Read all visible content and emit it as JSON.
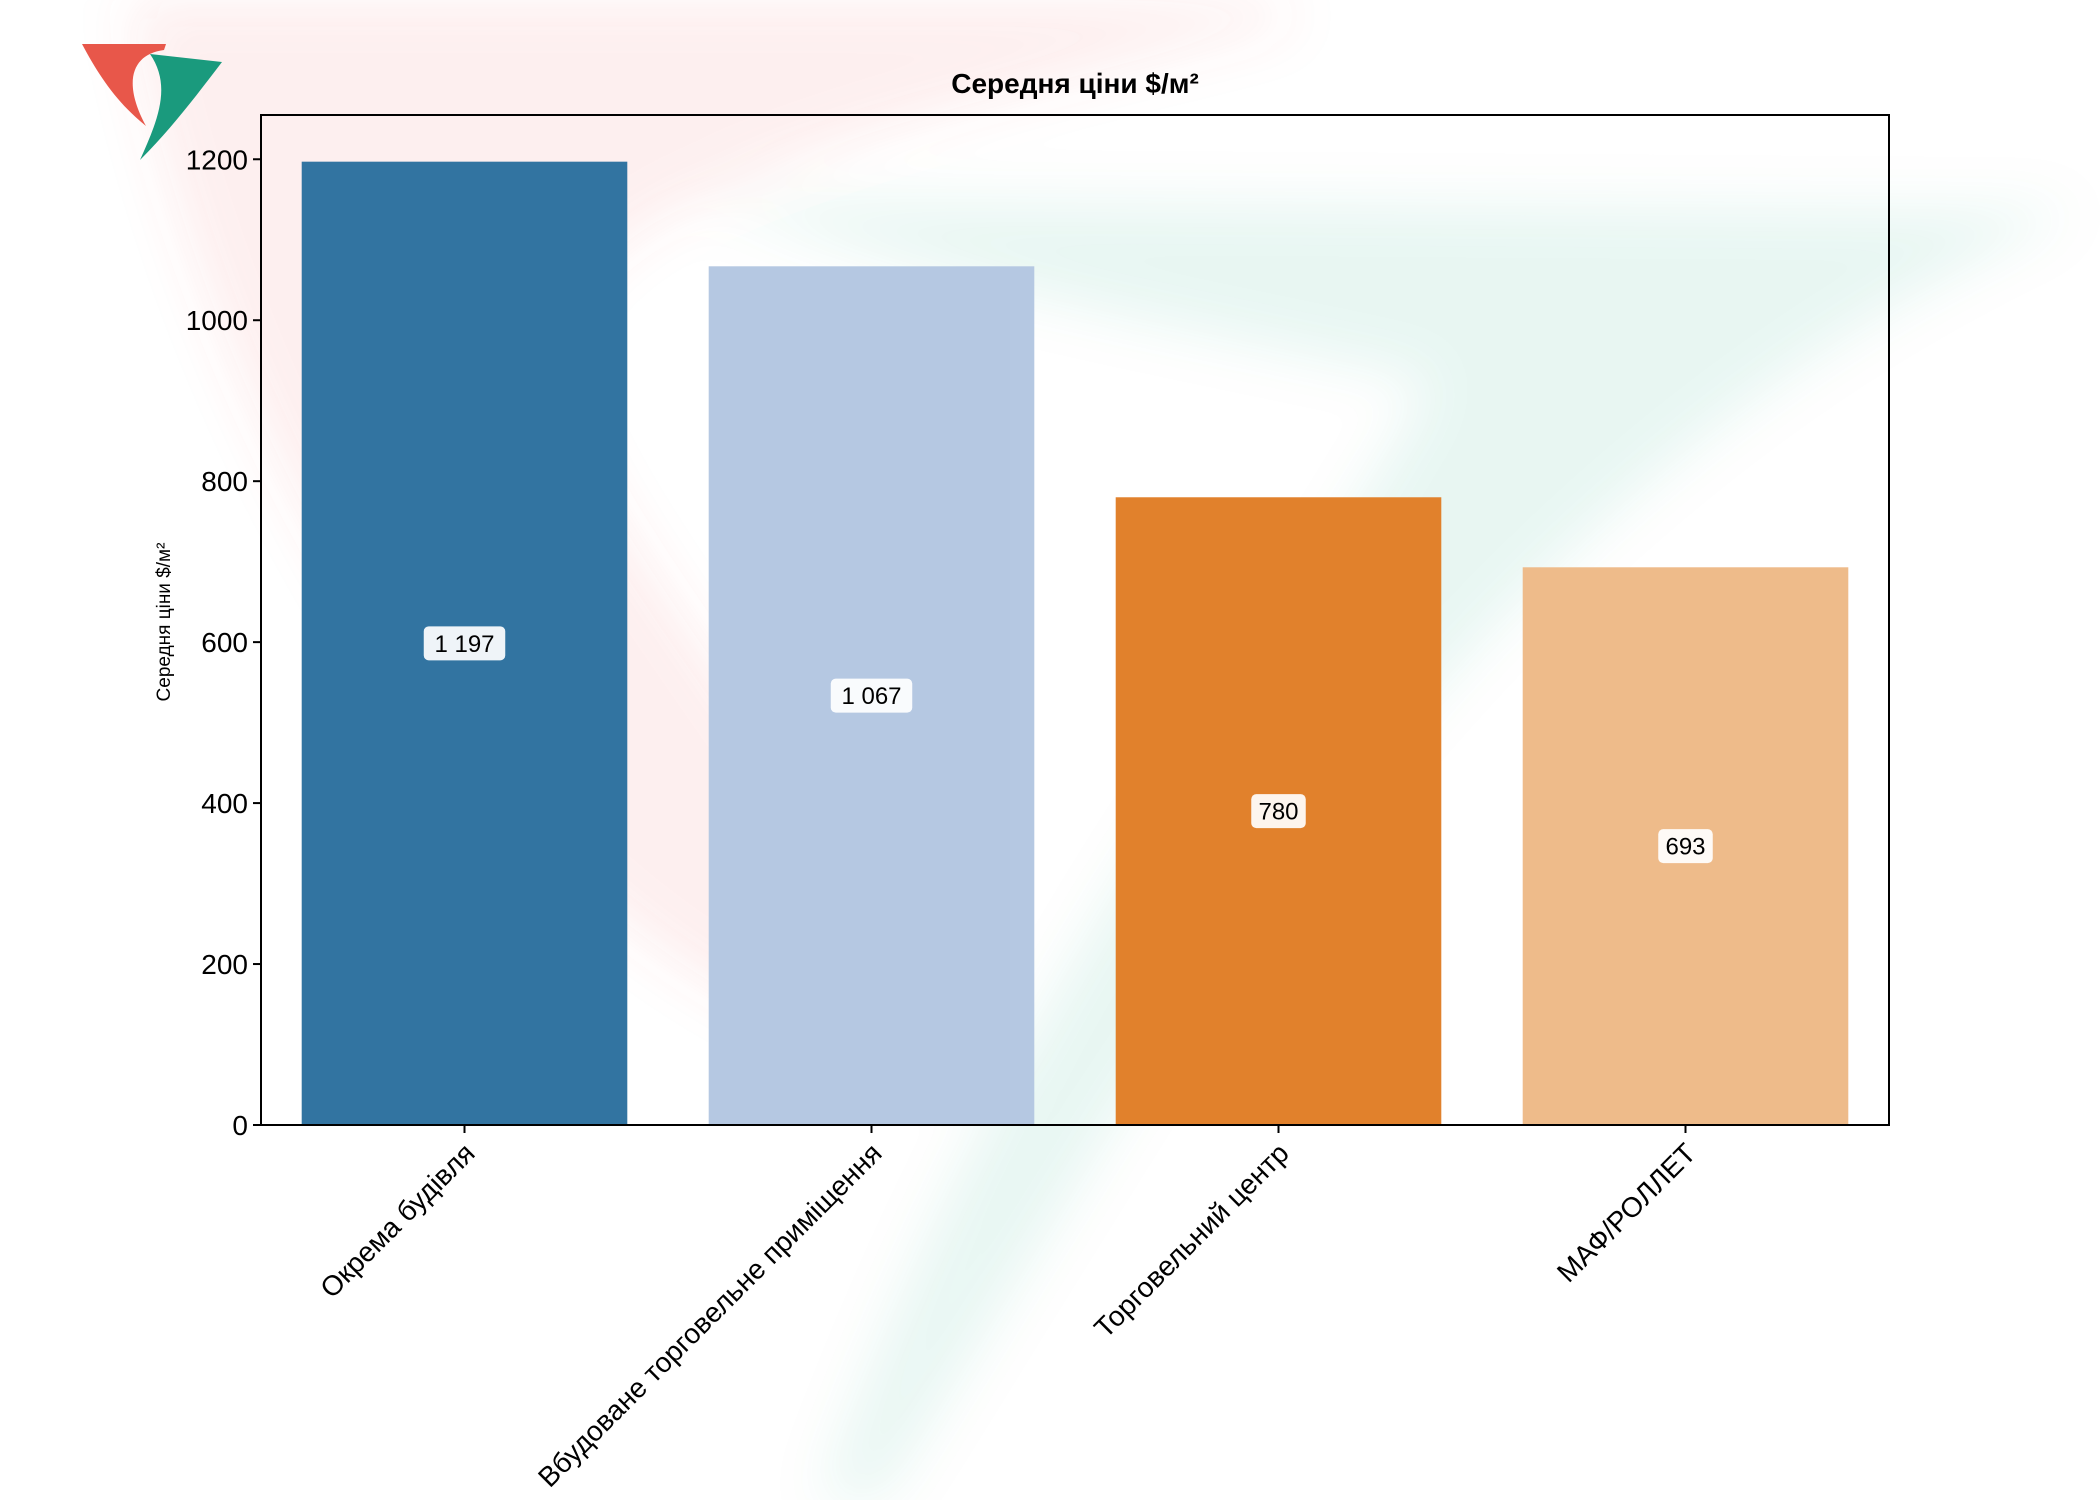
{
  "chart_data": {
    "type": "bar",
    "title": "Середня ціни $/м²",
    "xlabel": "",
    "ylabel": "Середня ціни $/м²",
    "categories": [
      "Окрема будівля",
      "Вбудоване торговельне приміщення",
      "Торговельний центр",
      "МАФ/РОЛЛЕТ"
    ],
    "values": [
      1197,
      1067,
      780,
      693
    ],
    "data_labels": [
      "1 197",
      "1 067",
      "780",
      "693"
    ],
    "colors": [
      "#3274a1",
      "#b5c8e2",
      "#e1812c",
      "#eebb8a"
    ],
    "ylim": [
      0,
      1255
    ],
    "yticks": [
      0,
      200,
      400,
      600,
      800,
      1000,
      1200
    ],
    "grid": false,
    "legend": "none"
  },
  "logo": {
    "name": "company-logo-icon",
    "colors": [
      "#e8574a",
      "#1a9a7d"
    ]
  }
}
